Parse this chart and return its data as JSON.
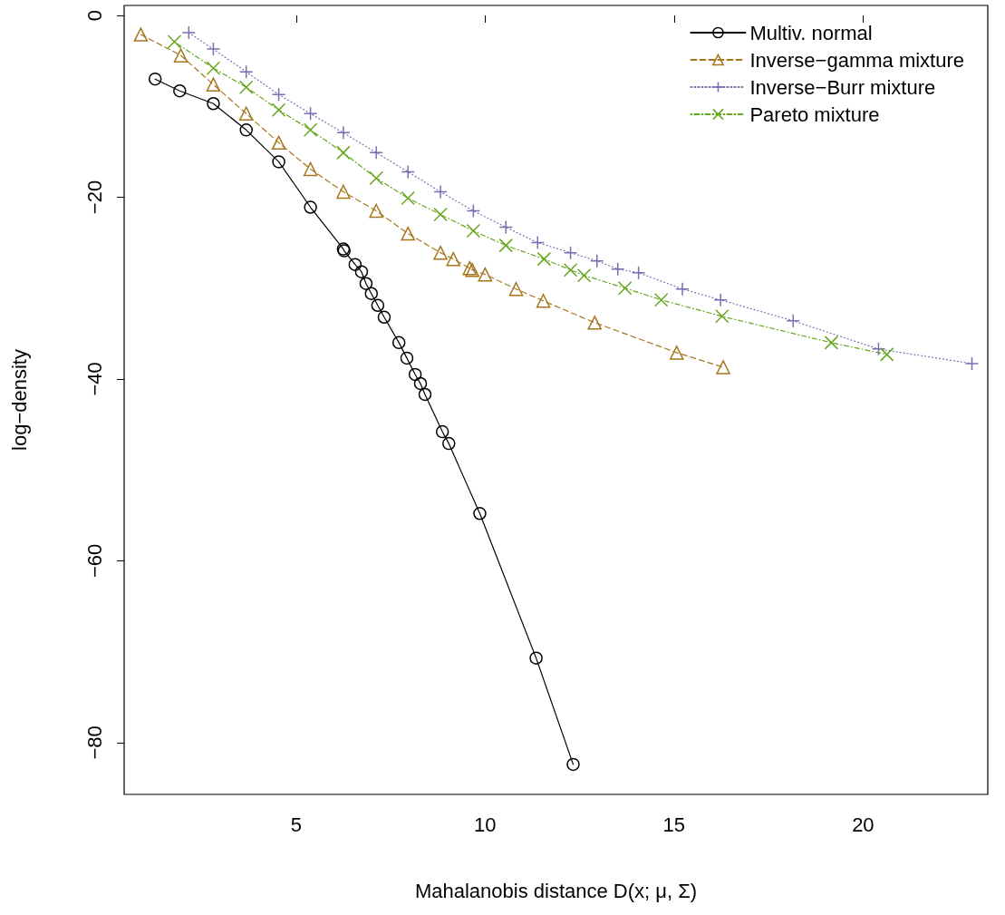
{
  "chart_data": {
    "type": "line",
    "xlabel": "Mahalanobis distance D(x; μ, Σ)",
    "ylabel": "log−density",
    "xlim": [
      0.45,
      23.3
    ],
    "xticks": [
      5,
      10,
      15,
      20
    ],
    "ylim": [
      -85.7,
      1.1
    ],
    "yticks": [
      -80,
      -60,
      -40,
      -20,
      0
    ],
    "grid": false,
    "legend": "top right",
    "series": [
      {
        "name": "Multiv. normal",
        "color": "#000000",
        "marker": "circle",
        "line_style": "solid",
        "x": [
          1.27,
          1.92,
          2.81,
          3.68,
          4.54,
          5.38,
          6.25,
          6.27,
          6.56,
          6.73,
          6.85,
          6.99,
          7.16,
          7.33,
          7.72,
          7.93,
          8.15,
          8.29,
          8.41,
          8.87,
          9.04,
          9.86,
          11.35,
          12.33
        ],
        "values": [
          -7.0,
          -8.3,
          -9.7,
          -12.6,
          -16.1,
          -21.1,
          -25.7,
          -25.9,
          -27.4,
          -28.2,
          -29.5,
          -30.6,
          -31.9,
          -33.2,
          -36.0,
          -37.7,
          -39.5,
          -40.5,
          -41.7,
          -45.8,
          -47.1,
          -54.8,
          -70.7,
          -82.4
        ]
      },
      {
        "name": "Inverse−gamma mixture",
        "color": "#a6761d",
        "marker": "triangle",
        "line_style": "dashed",
        "x": [
          0.89,
          1.95,
          2.81,
          3.68,
          4.54,
          5.38,
          6.25,
          7.12,
          7.96,
          8.82,
          9.16,
          9.59,
          9.66,
          10.0,
          10.82,
          11.54,
          12.9,
          15.07,
          16.3
        ],
        "values": [
          -2.1,
          -4.4,
          -7.6,
          -10.8,
          -14.0,
          -16.9,
          -19.4,
          -21.5,
          -24.0,
          -26.1,
          -26.8,
          -27.8,
          -28.0,
          -28.5,
          -30.1,
          -31.4,
          -33.8,
          -37.1,
          -38.7
        ]
      },
      {
        "name": "Inverse−Burr mixture",
        "color": "#7570b3",
        "marker": "plus",
        "line_style": "dotted",
        "x": [
          2.16,
          2.81,
          3.68,
          4.54,
          5.38,
          6.25,
          7.12,
          7.96,
          8.82,
          9.69,
          10.55,
          11.39,
          12.26,
          12.96,
          13.51,
          14.06,
          15.22,
          16.23,
          18.15,
          20.41,
          22.88
        ],
        "values": [
          -1.9,
          -3.7,
          -6.2,
          -8.7,
          -10.8,
          -12.9,
          -15.1,
          -17.2,
          -19.4,
          -21.5,
          -23.3,
          -25.0,
          -26.1,
          -27.0,
          -27.9,
          -28.3,
          -30.1,
          -31.3,
          -33.6,
          -36.7,
          -38.3
        ]
      },
      {
        "name": "Pareto mixture",
        "color": "#66a61e",
        "marker": "cross",
        "line_style": "dotdash",
        "x": [
          1.78,
          2.81,
          3.68,
          4.54,
          5.38,
          6.25,
          7.12,
          7.96,
          8.82,
          9.69,
          10.55,
          11.56,
          12.26,
          12.62,
          13.7,
          14.66,
          16.27,
          19.16,
          20.63
        ],
        "values": [
          -2.9,
          -5.8,
          -7.9,
          -10.4,
          -12.6,
          -15.1,
          -17.9,
          -20.1,
          -21.9,
          -23.7,
          -25.3,
          -26.8,
          -28.0,
          -28.6,
          -30.0,
          -31.3,
          -33.1,
          -36.0,
          -37.3
        ]
      }
    ]
  }
}
